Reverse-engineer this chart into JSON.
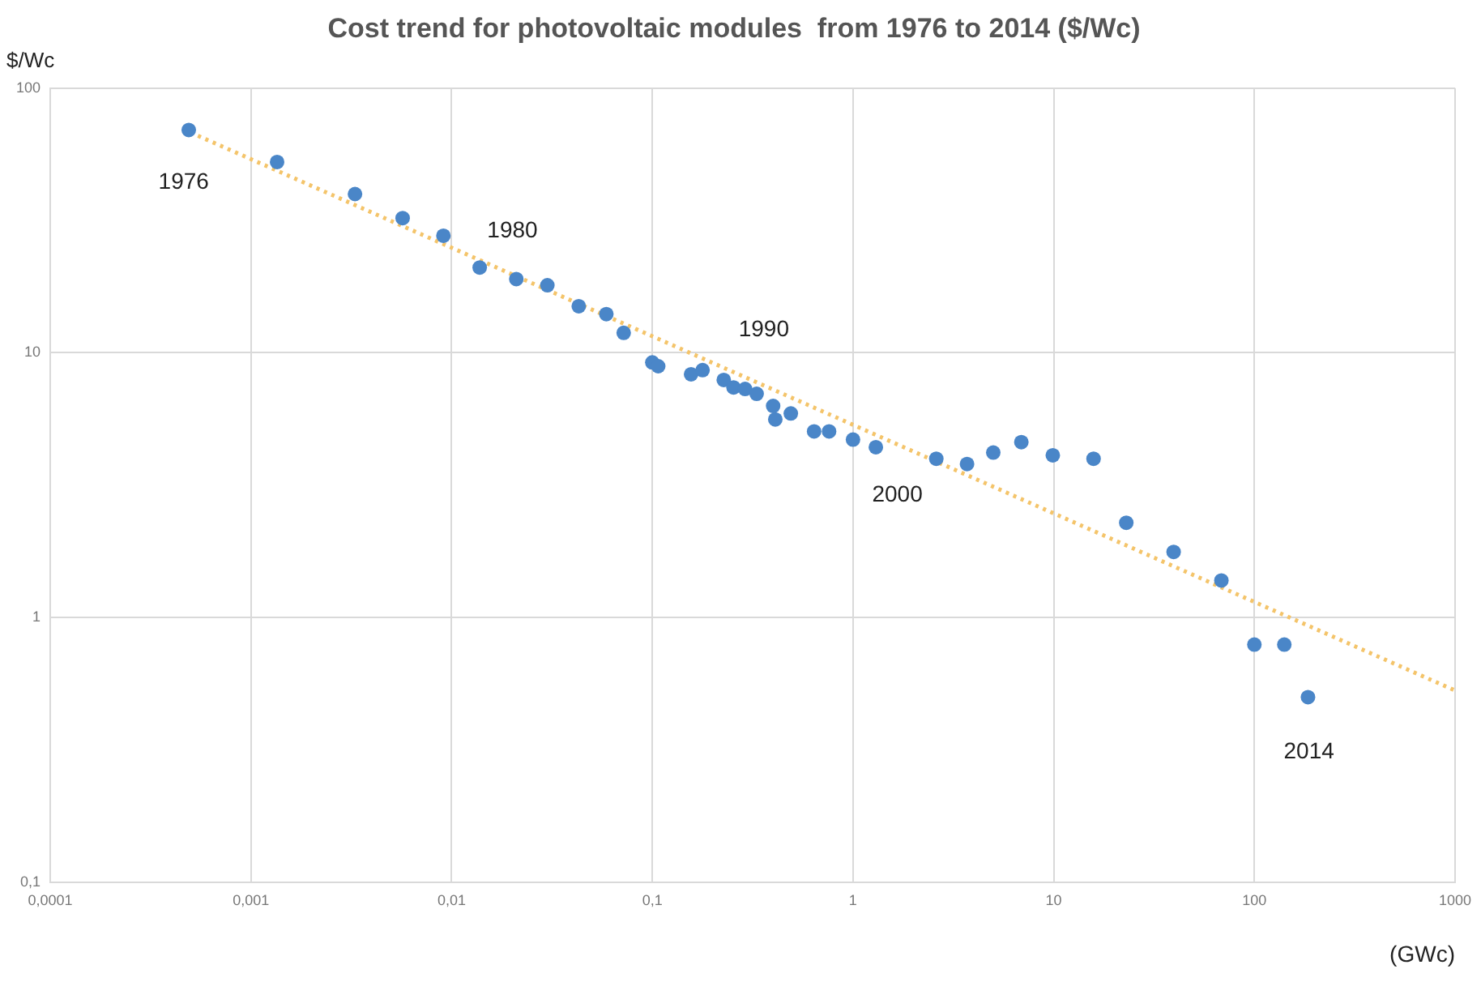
{
  "chart_data": {
    "type": "scatter",
    "title": "Cost trend for photovoltaic modules  from 1976 to 2014 ($/Wc)",
    "ylabel": "$/Wc",
    "xlabel": "(GWc)",
    "log": "xy",
    "grid": true,
    "legend": false,
    "marker": "circle",
    "xlim": [
      0.0001,
      1000
    ],
    "xticks": [
      {
        "value": 0.0001,
        "label": "0,0001"
      },
      {
        "value": 0.001,
        "label": "0,001"
      },
      {
        "value": 0.01,
        "label": "0,01"
      },
      {
        "value": 0.1,
        "label": "0,1"
      },
      1,
      10,
      100,
      1000
    ],
    "ylim": [
      0.1,
      100
    ],
    "yticks": [
      {
        "value": 0.1,
        "label": "0,1"
      },
      1,
      10,
      100
    ],
    "series": [
      {
        "color": "#4a86c8",
        "x": [
          0.00049,
          0.00135,
          0.0033,
          0.0057,
          0.0091,
          0.0138,
          0.021,
          0.03,
          0.043,
          0.059,
          0.072,
          0.1,
          0.107,
          0.156,
          0.178,
          0.227,
          0.254,
          0.29,
          0.331,
          0.4,
          0.41,
          0.49,
          0.64,
          0.76,
          1.0,
          1.3,
          2.6,
          3.7,
          5.0,
          6.9,
          9.9,
          15.8,
          23,
          39.6,
          68.5,
          100,
          141,
          185
        ],
        "values": [
          69.5,
          52.6,
          39.8,
          32.3,
          27.7,
          21,
          19,
          18,
          15,
          14,
          11.9,
          9.2,
          8.9,
          8.3,
          8.6,
          7.9,
          7.4,
          7.3,
          7.0,
          6.3,
          5.6,
          5.9,
          5.05,
          5.05,
          4.7,
          4.4,
          3.98,
          3.8,
          4.2,
          4.6,
          4.1,
          3.98,
          2.28,
          1.77,
          1.38,
          0.79,
          0.79,
          0.5
        ]
      },
      {
        "type": "line",
        "color": "#f4c46a",
        "line_style": "dotted",
        "marker": "none",
        "x": [
          0.0005,
          1000
        ],
        "values": [
          68,
          0.53
        ]
      }
    ],
    "annotations": [
      "1976",
      "1980",
      "1990",
      "2000",
      "2014"
    ]
  }
}
